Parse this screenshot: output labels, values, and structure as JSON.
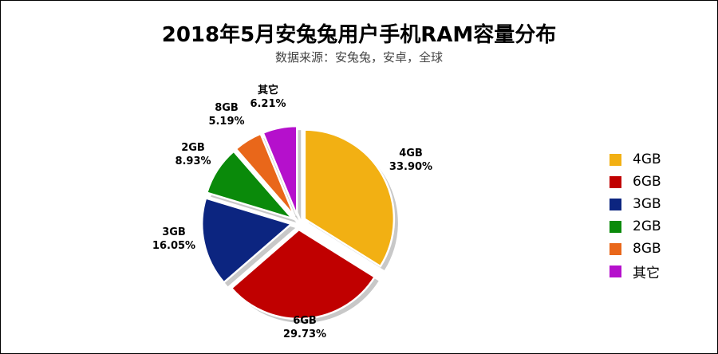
{
  "title": "2018年5月安兔兔用户手机RAM容量分布",
  "subtitle": "数据来源：安兔兔，安卓，全球",
  "chart_data": {
    "type": "pie",
    "categories": [
      "4GB",
      "6GB",
      "3GB",
      "2GB",
      "8GB",
      "其它"
    ],
    "values": [
      33.9,
      29.73,
      16.05,
      8.93,
      5.19,
      6.21
    ],
    "value_labels": [
      "33.90%",
      "29.73%",
      "16.05%",
      "8.93%",
      "5.19%",
      "6.21%"
    ],
    "colors": [
      "#f2b013",
      "#c00000",
      "#0c2580",
      "#0a8a0a",
      "#e9671a",
      "#b510cc"
    ],
    "exploded": true,
    "legend_position": "right"
  }
}
